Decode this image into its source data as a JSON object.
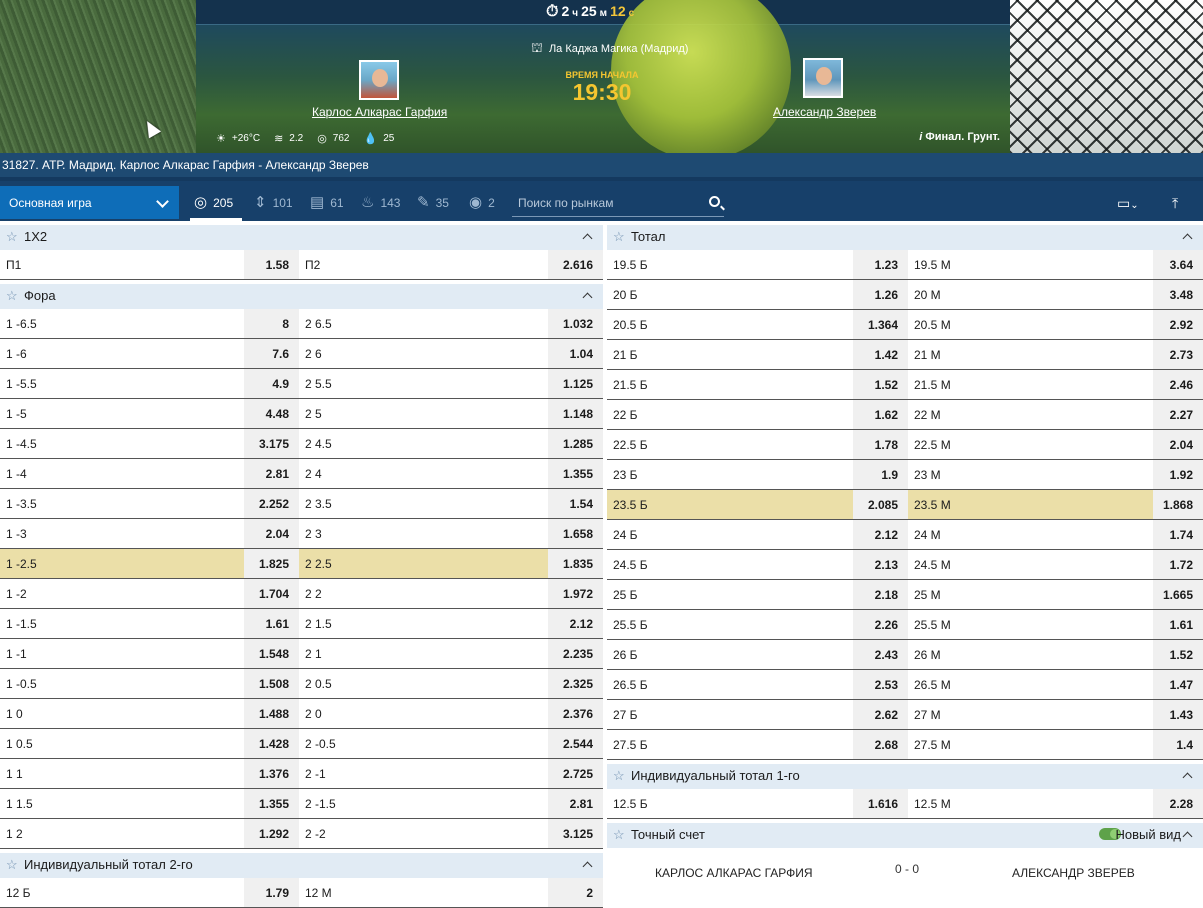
{
  "hero": {
    "timer": {
      "h": "2",
      "h_unit": "ч",
      "m": "25",
      "m_unit": "м",
      "s": "12",
      "s_unit": "с"
    },
    "stadium": "Ла Каджа Магика (Мадрид)",
    "player1": "Карлос Алкарас Гарфия",
    "player2": "Александр Зверев",
    "start_label": "ВРЕМЯ НАЧАЛА",
    "start_time": "19:30",
    "weather": {
      "temp": "+26°C",
      "wind": "2.2",
      "pressure": "762",
      "humidity": "25"
    },
    "surface": "Финал. Грунт."
  },
  "event_title": "31827. АТР. Мадрид. Карлос Алкарас Гарфия - Александр Зверев",
  "toolbar": {
    "main_game": "Основная игра",
    "tabs": [
      {
        "icon": "target-icon",
        "count": "205"
      },
      {
        "icon": "updown-icon",
        "count": "101"
      },
      {
        "icon": "stats-icon",
        "count": "61"
      },
      {
        "icon": "fire-icon",
        "count": "143"
      },
      {
        "icon": "wand-icon",
        "count": "35"
      },
      {
        "icon": "eye-icon",
        "count": "2"
      }
    ],
    "search_placeholder": "Поиск по рынкам"
  },
  "left": {
    "x12": {
      "title": "1Х2",
      "rows": [
        {
          "a": "П1",
          "ao": "1.58",
          "b": "П2",
          "bo": "2.616"
        }
      ]
    },
    "fora": {
      "title": "Фора",
      "rows": [
        {
          "a": "1 -6.5",
          "ao": "8",
          "b": "2 6.5",
          "bo": "1.032"
        },
        {
          "a": "1 -6",
          "ao": "7.6",
          "b": "2 6",
          "bo": "1.04"
        },
        {
          "a": "1 -5.5",
          "ao": "4.9",
          "b": "2 5.5",
          "bo": "1.125"
        },
        {
          "a": "1 -5",
          "ao": "4.48",
          "b": "2 5",
          "bo": "1.148"
        },
        {
          "a": "1 -4.5",
          "ao": "3.175",
          "b": "2 4.5",
          "bo": "1.285"
        },
        {
          "a": "1 -4",
          "ao": "2.81",
          "b": "2 4",
          "bo": "1.355"
        },
        {
          "a": "1 -3.5",
          "ao": "2.252",
          "b": "2 3.5",
          "bo": "1.54"
        },
        {
          "a": "1 -3",
          "ao": "2.04",
          "b": "2 3",
          "bo": "1.658"
        },
        {
          "a": "1 -2.5",
          "ao": "1.825",
          "b": "2 2.5",
          "bo": "1.835",
          "hl": true
        },
        {
          "a": "1 -2",
          "ao": "1.704",
          "b": "2 2",
          "bo": "1.972"
        },
        {
          "a": "1 -1.5",
          "ao": "1.61",
          "b": "2 1.5",
          "bo": "2.12"
        },
        {
          "a": "1 -1",
          "ao": "1.548",
          "b": "2 1",
          "bo": "2.235"
        },
        {
          "a": "1 -0.5",
          "ao": "1.508",
          "b": "2 0.5",
          "bo": "2.325"
        },
        {
          "a": "1 0",
          "ao": "1.488",
          "b": "2 0",
          "bo": "2.376"
        },
        {
          "a": "1 0.5",
          "ao": "1.428",
          "b": "2 -0.5",
          "bo": "2.544"
        },
        {
          "a": "1 1",
          "ao": "1.376",
          "b": "2 -1",
          "bo": "2.725"
        },
        {
          "a": "1 1.5",
          "ao": "1.355",
          "b": "2 -1.5",
          "bo": "2.81"
        },
        {
          "a": "1 2",
          "ao": "1.292",
          "b": "2 -2",
          "bo": "3.125"
        }
      ]
    },
    "ind2": {
      "title": "Индивидуальный тотал 2-го",
      "rows": [
        {
          "a": "12 Б",
          "ao": "1.79",
          "b": "12 М",
          "bo": "2"
        }
      ]
    }
  },
  "right": {
    "total": {
      "title": "Тотал",
      "rows": [
        {
          "a": "19.5 Б",
          "ao": "1.23",
          "b": "19.5 М",
          "bo": "3.64"
        },
        {
          "a": "20 Б",
          "ao": "1.26",
          "b": "20 М",
          "bo": "3.48"
        },
        {
          "a": "20.5 Б",
          "ao": "1.364",
          "b": "20.5 М",
          "bo": "2.92"
        },
        {
          "a": "21 Б",
          "ao": "1.42",
          "b": "21 М",
          "bo": "2.73"
        },
        {
          "a": "21.5 Б",
          "ao": "1.52",
          "b": "21.5 М",
          "bo": "2.46"
        },
        {
          "a": "22 Б",
          "ao": "1.62",
          "b": "22 М",
          "bo": "2.27"
        },
        {
          "a": "22.5 Б",
          "ao": "1.78",
          "b": "22.5 М",
          "bo": "2.04"
        },
        {
          "a": "23 Б",
          "ao": "1.9",
          "b": "23 М",
          "bo": "1.92"
        },
        {
          "a": "23.5 Б",
          "ao": "2.085",
          "b": "23.5 М",
          "bo": "1.868",
          "hl": true
        },
        {
          "a": "24 Б",
          "ao": "2.12",
          "b": "24 М",
          "bo": "1.74"
        },
        {
          "a": "24.5 Б",
          "ao": "2.13",
          "b": "24.5 М",
          "bo": "1.72"
        },
        {
          "a": "25 Б",
          "ao": "2.18",
          "b": "25 М",
          "bo": "1.665"
        },
        {
          "a": "25.5 Б",
          "ao": "2.26",
          "b": "25.5 М",
          "bo": "1.61"
        },
        {
          "a": "26 Б",
          "ao": "2.43",
          "b": "26 М",
          "bo": "1.52"
        },
        {
          "a": "26.5 Б",
          "ao": "2.53",
          "b": "26.5 М",
          "bo": "1.47"
        },
        {
          "a": "27 Б",
          "ao": "2.62",
          "b": "27 М",
          "bo": "1.43"
        },
        {
          "a": "27.5 Б",
          "ao": "2.68",
          "b": "27.5 М",
          "bo": "1.4"
        }
      ]
    },
    "ind1": {
      "title": "Индивидуальный тотал 1-го",
      "rows": [
        {
          "a": "12.5 Б",
          "ao": "1.616",
          "b": "12.5 М",
          "bo": "2.28"
        }
      ]
    },
    "exact": {
      "title": "Точный счет",
      "new_view": "Новый вид",
      "player1": "Карлос Алкарас Гарфия",
      "score": "0 - 0",
      "player2": "Александр Зверев"
    }
  },
  "colors": {
    "highlight": "#ebdfa8",
    "header_bg": "#e1ebf4",
    "toolbar": "#17406a",
    "accent": "#0e6db8"
  }
}
